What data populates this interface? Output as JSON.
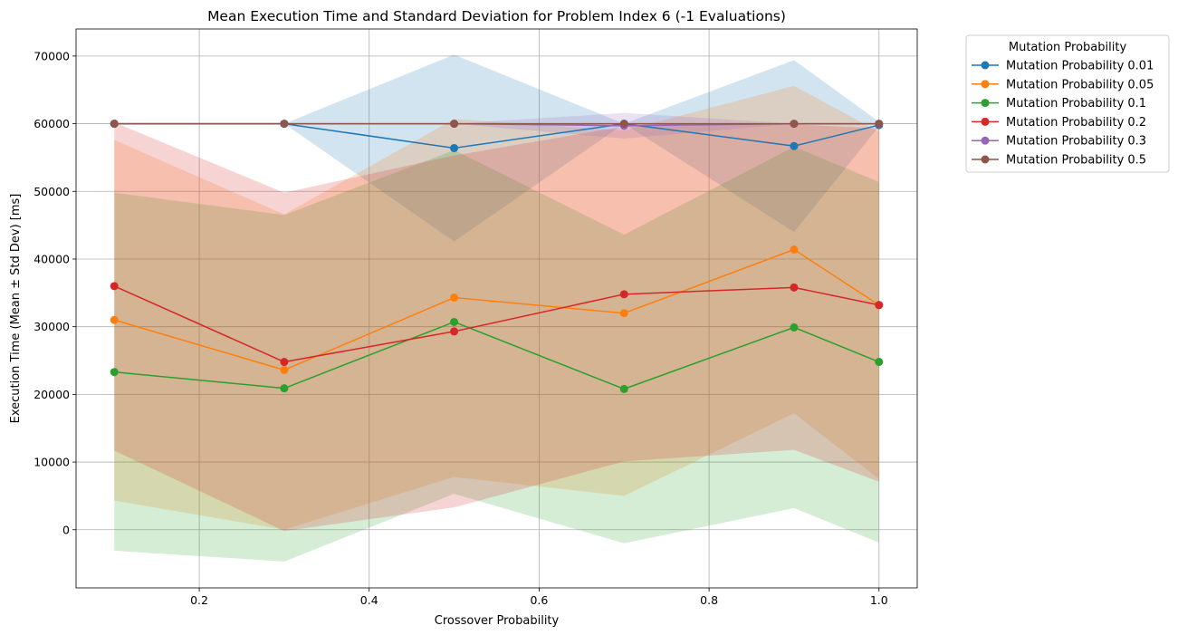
{
  "chart_data": {
    "type": "line",
    "title": "Mean Execution Time and Standard Deviation for Problem Index 6 (-1 Evaluations)",
    "xlabel": "Crossover Probability",
    "ylabel": "Execution Time (Mean ± Std Dev) [ms]",
    "xlim": [
      0.055,
      1.045
    ],
    "ylim": [
      -8600,
      74000
    ],
    "x_ticks": [
      0.2,
      0.4,
      0.6,
      0.8,
      1.0
    ],
    "x_tick_labels": [
      "0.2",
      "0.4",
      "0.6",
      "0.8",
      "1.0"
    ],
    "y_ticks": [
      0,
      10000,
      20000,
      30000,
      40000,
      50000,
      60000,
      70000
    ],
    "y_tick_labels": [
      "0",
      "10000",
      "20000",
      "30000",
      "40000",
      "50000",
      "60000",
      "70000"
    ],
    "grid": true,
    "legend": {
      "title": "Mutation Probability",
      "placement": "outside-upper-right"
    },
    "x": [
      0.1,
      0.3,
      0.5,
      0.7,
      0.9,
      1.0
    ],
    "series": [
      {
        "name": "Mutation Probability 0.01",
        "color": "#1f77b4",
        "mean": [
          60000,
          60000,
          56400,
          60000,
          56700,
          59800
        ],
        "lower": [
          60000,
          60000,
          42600,
          60000,
          44000,
          59600
        ],
        "upper": [
          60000,
          60000,
          70200,
          60000,
          69400,
          60300
        ]
      },
      {
        "name": "Mutation Probability 0.05",
        "color": "#ff7f0e",
        "mean": [
          31000,
          23600,
          34300,
          32000,
          41400,
          33200
        ],
        "lower": [
          4300,
          0,
          7800,
          5000,
          17200,
          7500
        ],
        "upper": [
          57600,
          46600,
          60700,
          59000,
          65600,
          58800
        ]
      },
      {
        "name": "Mutation Probability 0.1",
        "color": "#2ca02c",
        "mean": [
          23300,
          20900,
          30700,
          20800,
          29900,
          24800
        ],
        "lower": [
          -3100,
          -4700,
          5300,
          -2000,
          3200,
          -1900
        ],
        "upper": [
          49800,
          46500,
          56100,
          43600,
          56600,
          51400
        ]
      },
      {
        "name": "Mutation Probability 0.2",
        "color": "#d62728",
        "mean": [
          36000,
          24800,
          29300,
          34800,
          35800,
          33200
        ],
        "lower": [
          11700,
          -200,
          3300,
          10100,
          11800,
          7100
        ],
        "upper": [
          60200,
          49800,
          55300,
          59600,
          59900,
          59300
        ]
      },
      {
        "name": "Mutation Probability 0.3",
        "color": "#9467bd",
        "mean": [
          60000,
          60000,
          60000,
          59700,
          60000,
          60000
        ],
        "lower": [
          60000,
          60000,
          60000,
          57800,
          60000,
          60000
        ],
        "upper": [
          60000,
          60000,
          60000,
          61600,
          60000,
          60000
        ]
      },
      {
        "name": "Mutation Probability 0.5",
        "color": "#8c564b",
        "mean": [
          60000,
          60000,
          60000,
          60000,
          60000,
          60000
        ],
        "lower": [
          60000,
          60000,
          60000,
          60000,
          60000,
          60000
        ],
        "upper": [
          60000,
          60000,
          60000,
          60000,
          60000,
          60000
        ]
      }
    ]
  }
}
